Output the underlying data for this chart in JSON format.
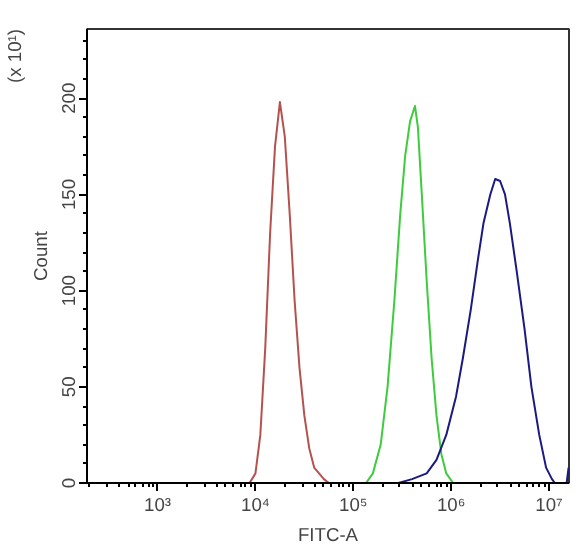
{
  "chart_data": {
    "type": "line",
    "xlabel": "FITC-A",
    "ylabel": "Count",
    "annotations": [
      "(x 10¹)"
    ],
    "log": "x",
    "grid": false,
    "marker": "none",
    "line_style": "solid",
    "xlim": [
      190,
      16000000
    ],
    "ylim": [
      0,
      236
    ],
    "xticks": [
      {
        "value": 1000,
        "label": "10³"
      },
      {
        "value": 10000,
        "label": "10⁴"
      },
      {
        "value": 100000,
        "label": "10⁵"
      },
      {
        "value": 1000000,
        "label": "10⁶"
      },
      {
        "value": 10000000,
        "label": "10⁷"
      }
    ],
    "yticks": [
      0,
      50,
      100,
      150,
      200
    ],
    "series": [
      {
        "color": "#b5524f",
        "x": [
          8710,
          10000,
          11220,
          12590,
          14130,
          15850,
          17780,
          19950,
          22390,
          25120,
          28180,
          31620,
          35480,
          39810,
          50120,
          56230
        ],
        "values": [
          0,
          5,
          25,
          70,
          130,
          175,
          198,
          180,
          140,
          95,
          60,
          35,
          18,
          8,
          2,
          0
        ]
      },
      {
        "color": "#3ccc3c",
        "x": [
          134900,
          158500,
          190500,
          223900,
          263000,
          302000,
          338800,
          380200,
          426600,
          457100,
          501200,
          562300,
          631000,
          707900,
          794300,
          891300,
          1047000
        ],
        "values": [
          0,
          5,
          20,
          50,
          95,
          140,
          170,
          188,
          196,
          185,
          150,
          105,
          65,
          35,
          15,
          5,
          0
        ]
      },
      {
        "color": "#1a1a80",
        "x": [
          288400,
          398100,
          562300,
          707900,
          891300,
          1122000,
          1318000,
          1585000,
          1862000,
          2138000,
          2512000,
          2818000,
          3162000,
          3548000,
          3981000,
          4677000,
          5623000,
          6607000,
          7943000,
          9333000,
          10720000,
          11480000,
          15140000,
          15850000
        ],
        "values": [
          0,
          2,
          5,
          12,
          25,
          45,
          65,
          90,
          115,
          135,
          150,
          158,
          157,
          150,
          135,
          110,
          80,
          50,
          25,
          8,
          2,
          0,
          0,
          8
        ]
      }
    ]
  }
}
